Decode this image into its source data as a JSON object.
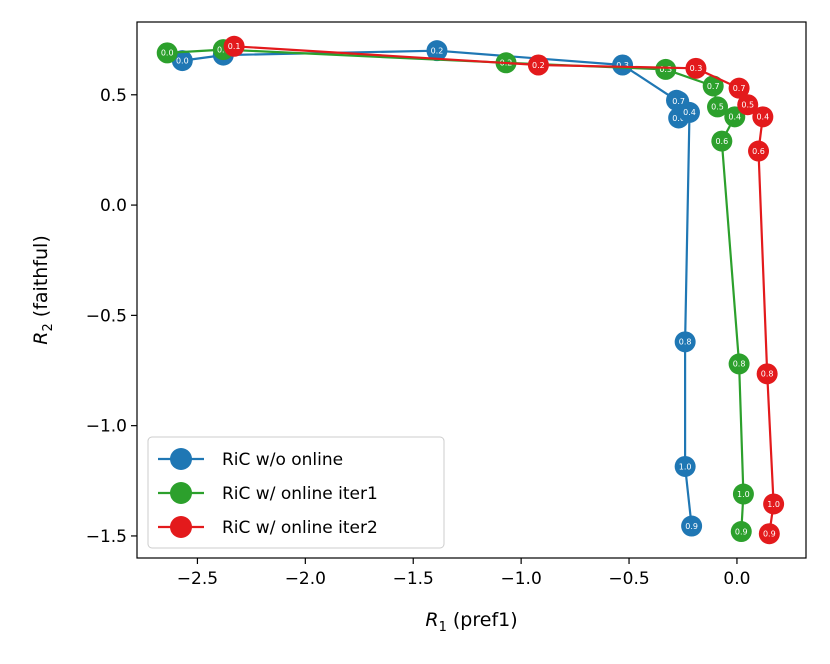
{
  "chart_data": {
    "type": "line",
    "title": "",
    "xlabel_sym": "R",
    "xlabel_sub": "1",
    "xlabel_rest": " (pref1)",
    "ylabel_sym": "R",
    "ylabel_sub": "2",
    "ylabel_rest": " (faithful)",
    "xlim": [
      -2.78,
      0.32
    ],
    "ylim": [
      -1.6,
      0.83
    ],
    "xticks": [
      -2.5,
      -2.0,
      -1.5,
      -1.0,
      -0.5,
      0.0
    ],
    "xtick_labels": [
      "−2.5",
      "−2.0",
      "−1.5",
      "−1.0",
      "−0.5",
      "0.0"
    ],
    "yticks": [
      0.5,
      0.0,
      -0.5,
      -1.0,
      -1.5
    ],
    "ytick_labels": [
      "0.5",
      "0.0",
      "−0.5",
      "−1.0",
      "−1.5"
    ],
    "legend_position": "lower-left",
    "series": [
      {
        "name": "RiC w/o online",
        "color": "#1f77b4",
        "points": [
          {
            "x": -2.57,
            "y": 0.655,
            "label": "0.0"
          },
          {
            "x": -2.38,
            "y": 0.68,
            "label": "0.1"
          },
          {
            "x": -1.39,
            "y": 0.7,
            "label": "0.2"
          },
          {
            "x": -0.53,
            "y": 0.635,
            "label": "0.3"
          },
          {
            "x": -0.28,
            "y": 0.475,
            "label": "0.5"
          },
          {
            "x": -0.27,
            "y": 0.47,
            "label": "0.7"
          },
          {
            "x": -0.27,
            "y": 0.395,
            "label": "0.6"
          },
          {
            "x": -0.22,
            "y": 0.42,
            "label": "0.4"
          },
          {
            "x": -0.24,
            "y": -0.62,
            "label": "0.8"
          },
          {
            "x": -0.24,
            "y": -1.185,
            "label": "1.0"
          },
          {
            "x": -0.21,
            "y": -1.455,
            "label": "0.9"
          }
        ]
      },
      {
        "name": "RiC w/ online iter1",
        "color": "#2ca02c",
        "points": [
          {
            "x": -2.64,
            "y": 0.69,
            "label": "0.0"
          },
          {
            "x": -2.38,
            "y": 0.705,
            "label": "0.1"
          },
          {
            "x": -1.07,
            "y": 0.645,
            "label": "0.2"
          },
          {
            "x": -0.33,
            "y": 0.615,
            "label": "0.3"
          },
          {
            "x": -0.11,
            "y": 0.54,
            "label": "0.7"
          },
          {
            "x": -0.09,
            "y": 0.445,
            "label": "0.5"
          },
          {
            "x": -0.01,
            "y": 0.4,
            "label": "0.4"
          },
          {
            "x": -0.07,
            "y": 0.29,
            "label": "0.6"
          },
          {
            "x": 0.01,
            "y": -0.72,
            "label": "0.8"
          },
          {
            "x": 0.03,
            "y": -1.31,
            "label": "1.0"
          },
          {
            "x": 0.02,
            "y": -1.48,
            "label": "0.9"
          }
        ]
      },
      {
        "name": "RiC w/ online iter2",
        "color": "#e31a1c",
        "points": [
          {
            "x": -2.33,
            "y": 0.72,
            "label": "0.1"
          },
          {
            "x": -0.92,
            "y": 0.635,
            "label": "0.2"
          },
          {
            "x": -0.19,
            "y": 0.62,
            "label": "0.3"
          },
          {
            "x": 0.01,
            "y": 0.53,
            "label": "0.7"
          },
          {
            "x": 0.05,
            "y": 0.455,
            "label": "0.5"
          },
          {
            "x": 0.12,
            "y": 0.4,
            "label": "0.4"
          },
          {
            "x": 0.1,
            "y": 0.245,
            "label": "0.6"
          },
          {
            "x": 0.14,
            "y": -0.765,
            "label": "0.8"
          },
          {
            "x": 0.17,
            "y": -1.355,
            "label": "1.0"
          },
          {
            "x": 0.15,
            "y": -1.49,
            "label": "0.9"
          }
        ]
      }
    ]
  }
}
